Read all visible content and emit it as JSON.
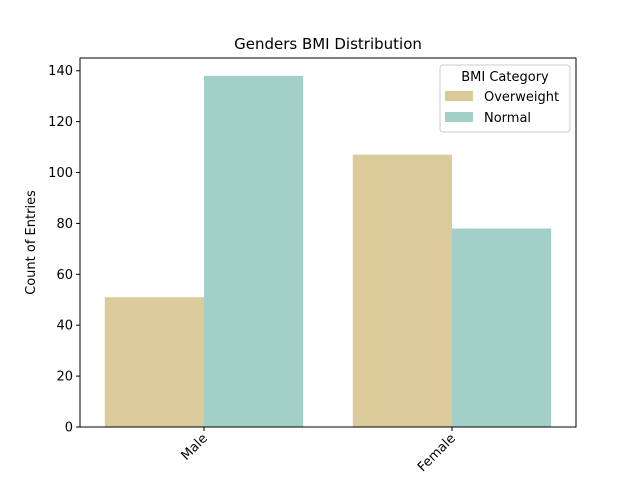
{
  "chart_data": {
    "type": "bar",
    "title": "Genders BMI Distribution",
    "xlabel": "",
    "ylabel": "Count of Entries",
    "categories": [
      "Male",
      "Female"
    ],
    "series": [
      {
        "name": "Overweight",
        "values": [
          51,
          107
        ],
        "color": "#dbca9a"
      },
      {
        "name": "Normal",
        "values": [
          138,
          78
        ],
        "color": "#a2d0c8"
      }
    ],
    "ylim": [
      0,
      145
    ],
    "yticks": [
      0,
      20,
      40,
      60,
      80,
      100,
      120,
      140
    ],
    "legend": {
      "title": "BMI Category",
      "placement": "top-right"
    },
    "grid": false
  }
}
